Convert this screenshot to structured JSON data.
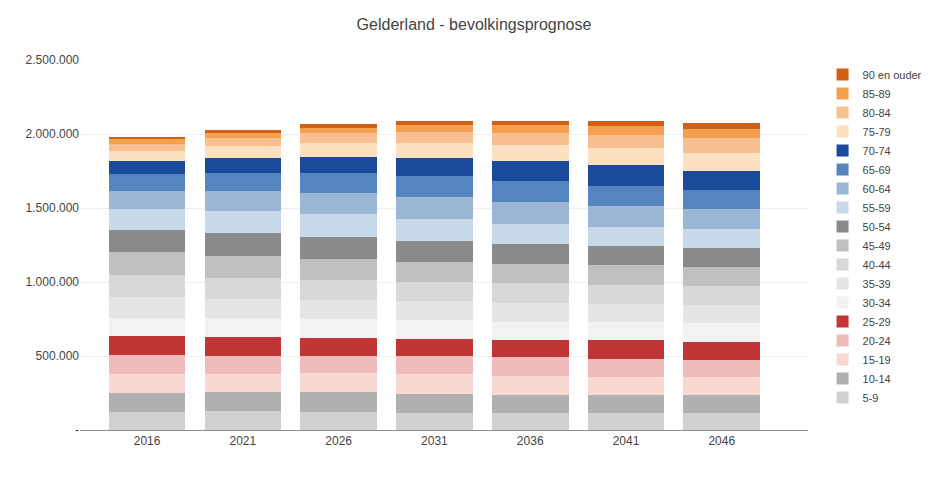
{
  "chart_data": {
    "type": "bar",
    "stacked": true,
    "title": "Gelderland - bevolkingsprognose",
    "x": [
      2016,
      2021,
      2026,
      2031,
      2036,
      2041,
      2046
    ],
    "series": [
      {
        "name": "5-9",
        "color": "#d0d0d0",
        "values": [
          123000,
          127000,
          124000,
          118000,
          116000,
          117000,
          117000
        ]
      },
      {
        "name": "10-14",
        "color": "#b0b0b0",
        "values": [
          126000,
          127000,
          131000,
          127000,
          121000,
          120000,
          121000
        ]
      },
      {
        "name": "15-19",
        "color": "#f8d8d0",
        "values": [
          130000,
          123000,
          127000,
          131000,
          127000,
          121000,
          120000
        ]
      },
      {
        "name": "20-24",
        "color": "#eebbbb",
        "values": [
          130000,
          125000,
          120000,
          123000,
          127000,
          123000,
          117000
        ]
      },
      {
        "name": "25-29",
        "color": "#c03535",
        "values": [
          123000,
          127000,
          122000,
          118000,
          120000,
          125000,
          120000
        ]
      },
      {
        "name": "30-34",
        "color": "#f2f2f2",
        "values": [
          127000,
          125000,
          129000,
          124000,
          120000,
          122000,
          127000
        ]
      },
      {
        "name": "35-39",
        "color": "#e5e5e5",
        "values": [
          138000,
          130000,
          127000,
          131000,
          127000,
          122000,
          124000
        ]
      },
      {
        "name": "40-44",
        "color": "#d8d8d8",
        "values": [
          148000,
          140000,
          132000,
          128000,
          132000,
          128000,
          124000
        ]
      },
      {
        "name": "45-49",
        "color": "#c0c0c0",
        "values": [
          155000,
          150000,
          142000,
          134000,
          130000,
          134000,
          130000
        ]
      },
      {
        "name": "50-54",
        "color": "#8a8a8a",
        "values": [
          150000,
          155000,
          150000,
          142000,
          134000,
          130000,
          133000
        ]
      },
      {
        "name": "55-59",
        "color": "#c8daea",
        "values": [
          140000,
          148000,
          153000,
          148000,
          140000,
          132000,
          128000
        ]
      },
      {
        "name": "60-64",
        "color": "#9ab8d5",
        "values": [
          125000,
          137000,
          145000,
          150000,
          145000,
          137000,
          129000
        ]
      },
      {
        "name": "65-69",
        "color": "#5585be",
        "values": [
          112000,
          122000,
          133000,
          141000,
          146000,
          141000,
          133000
        ]
      },
      {
        "name": "70-74",
        "color": "#1a4a9a",
        "values": [
          92000,
          104000,
          113000,
          123000,
          131000,
          136000,
          130000
        ]
      },
      {
        "name": "75-79",
        "color": "#fce0c0",
        "values": [
          68000,
          79000,
          92000,
          100000,
          109000,
          116000,
          121000
        ]
      },
      {
        "name": "80-84",
        "color": "#f8c090",
        "values": [
          47000,
          55000,
          65000,
          76000,
          83000,
          91000,
          97000
        ]
      },
      {
        "name": "85-89",
        "color": "#f5a050",
        "values": [
          29000,
          33000,
          38000,
          45000,
          53000,
          58000,
          64000
        ]
      },
      {
        "name": "90 en ouder",
        "color": "#d06015",
        "values": [
          17000,
          20000,
          22000,
          26000,
          30000,
          35000,
          41000
        ]
      }
    ],
    "xlim": [
      2012.5,
      2050.5
    ],
    "xticks": [
      2016,
      2021,
      2026,
      2031,
      2036,
      2041,
      2046
    ],
    "ylim": [
      0,
      2500000
    ],
    "yticks": [
      {
        "value": 0,
        "label": "-"
      },
      {
        "value": 500000,
        "label": "500.000"
      },
      {
        "value": 1000000,
        "label": "1.000.000"
      },
      {
        "value": 1500000,
        "label": "1.500.000"
      },
      {
        "value": 2000000,
        "label": "2.000.000"
      },
      {
        "value": 2500000,
        "label": "2.500.000"
      }
    ],
    "grid": true,
    "legend": "right"
  }
}
